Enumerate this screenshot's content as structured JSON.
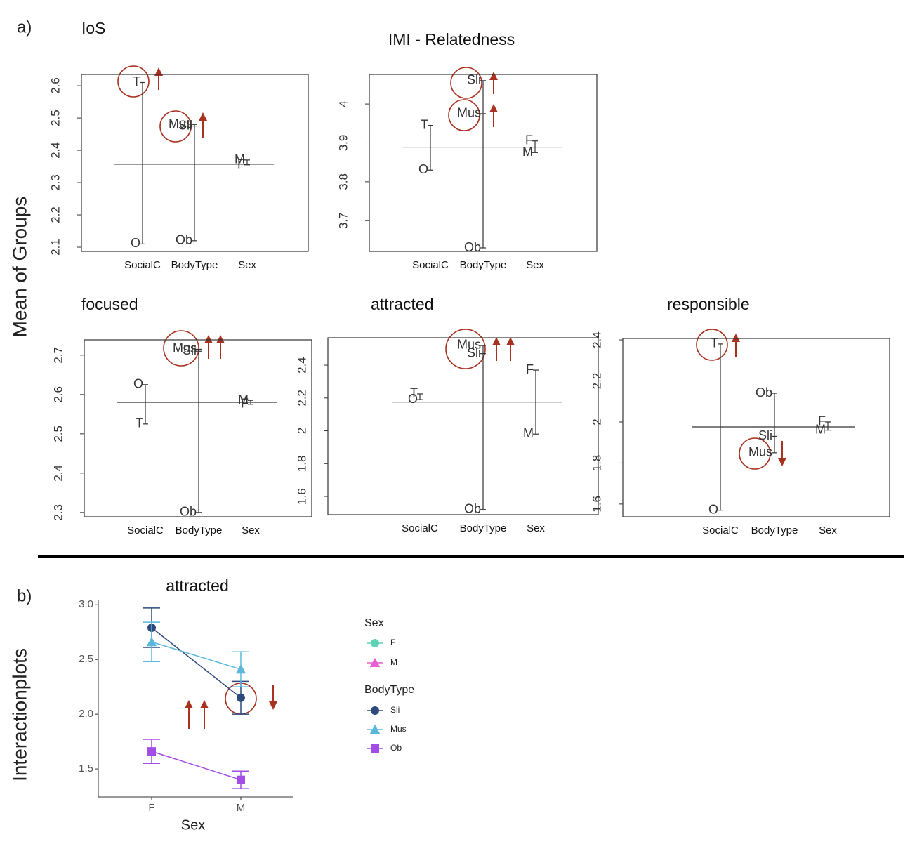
{
  "panel_labels": [
    "a)",
    "b)"
  ],
  "y_labels": [
    "Mean of Groups",
    "Interactionplots"
  ],
  "chart_data": [
    {
      "type": "design",
      "title": "IoS",
      "factors": [
        "SocialC",
        "BodyType",
        "Sex"
      ],
      "groups": [
        {
          "labels": [
            "T",
            "O"
          ],
          "values": [
            2.61,
            2.11
          ]
        },
        {
          "labels": [
            "Mus",
            "Sli",
            "Ob"
          ],
          "values": [
            2.48,
            2.475,
            2.12
          ]
        },
        {
          "labels": [
            "M",
            "F"
          ],
          "values": [
            2.37,
            2.355
          ]
        }
      ],
      "grand_mean": 2.357,
      "ylim": [
        2.087,
        2.635
      ],
      "yticks": [
        2.1,
        2.2,
        2.3,
        2.4,
        2.5,
        2.6
      ]
    },
    {
      "type": "design",
      "title": "IMI - Relatedness",
      "factors": [
        "SocialC",
        "BodyType",
        "Sex"
      ],
      "groups": [
        {
          "labels": [
            "T",
            "O"
          ],
          "values": [
            3.945,
            3.83
          ]
        },
        {
          "labels": [
            "Sli",
            "Mus",
            "Ob"
          ],
          "values": [
            4.06,
            3.975,
            3.63
          ]
        },
        {
          "labels": [
            "F",
            "M"
          ],
          "values": [
            3.905,
            3.875
          ]
        }
      ],
      "grand_mean": 3.889,
      "ylim": [
        3.621,
        4.076
      ],
      "yticks": [
        3.7,
        3.8,
        3.9,
        4.0
      ]
    },
    {
      "type": "design",
      "title": "focused",
      "factors": [
        "SocialC",
        "BodyType",
        "Sex"
      ],
      "groups": [
        {
          "labels": [
            "O",
            "T"
          ],
          "values": [
            2.625,
            2.525
          ]
        },
        {
          "labels": [
            "Mus",
            "Sli",
            "Ob"
          ],
          "values": [
            2.715,
            2.71,
            2.3
          ]
        },
        {
          "labels": [
            "M",
            "F"
          ],
          "values": [
            2.585,
            2.575
          ]
        }
      ],
      "grand_mean": 2.58,
      "ylim": [
        2.289,
        2.739
      ],
      "yticks": [
        2.3,
        2.4,
        2.5,
        2.6,
        2.7
      ]
    },
    {
      "type": "design",
      "title": "attracted",
      "factors": [
        "SocialC",
        "BodyType",
        "Sex"
      ],
      "groups": [
        {
          "labels": [
            "T",
            "O"
          ],
          "values": [
            2.225,
            2.19
          ]
        },
        {
          "labels": [
            "Mus",
            "Sli",
            "Ob"
          ],
          "values": [
            2.52,
            2.47,
            1.52
          ]
        },
        {
          "labels": [
            "F",
            "M"
          ],
          "values": [
            2.37,
            1.98
          ]
        }
      ],
      "grand_mean": 2.175,
      "ylim": [
        1.489,
        2.567
      ],
      "yticks": [
        1.6,
        1.8,
        2.0,
        2.2,
        2.4
      ]
    },
    {
      "type": "design",
      "title": "responsible",
      "factors": [
        "SocialC",
        "BodyType",
        "Sex"
      ],
      "groups": [
        {
          "labels": [
            "T",
            "O"
          ],
          "values": [
            2.38,
            1.57
          ]
        },
        {
          "labels": [
            "Ob",
            "Sli",
            "Mus"
          ],
          "values": [
            2.14,
            1.93,
            1.85
          ]
        },
        {
          "labels": [
            "F",
            "M"
          ],
          "values": [
            2.0,
            1.96
          ]
        }
      ],
      "grand_mean": 1.976,
      "ylim": [
        1.538,
        2.407
      ],
      "yticks": [
        1.6,
        1.8,
        2.0,
        2.2,
        2.4
      ]
    },
    {
      "type": "interaction",
      "title": "attracted",
      "x_label": "Sex",
      "categories": [
        "F",
        "M"
      ],
      "legend_titles": [
        "Sex",
        "BodyType"
      ],
      "sex_legend": [
        {
          "name": "F",
          "color": "#5fd3b3"
        },
        {
          "name": "M",
          "color": "#e75fd0"
        }
      ],
      "series": [
        {
          "name": "Sli",
          "color": "#2e4a7d",
          "values": [
            2.79,
            2.15
          ],
          "errors": [
            0.18,
            0.15
          ]
        },
        {
          "name": "Mus",
          "color": "#5bb8dc",
          "values": [
            2.66,
            2.41
          ],
          "errors": [
            0.18,
            0.16
          ]
        },
        {
          "name": "Ob",
          "color": "#a24de8",
          "values": [
            1.66,
            1.4
          ],
          "errors": [
            0.11,
            0.08
          ]
        }
      ],
      "ylim": [
        1.244,
        3.04
      ],
      "yticks": [
        1.5,
        2.0,
        2.5,
        3.0
      ],
      "ytick_labels": [
        "1.5",
        "2.0",
        "2.5",
        "3.0"
      ]
    }
  ]
}
